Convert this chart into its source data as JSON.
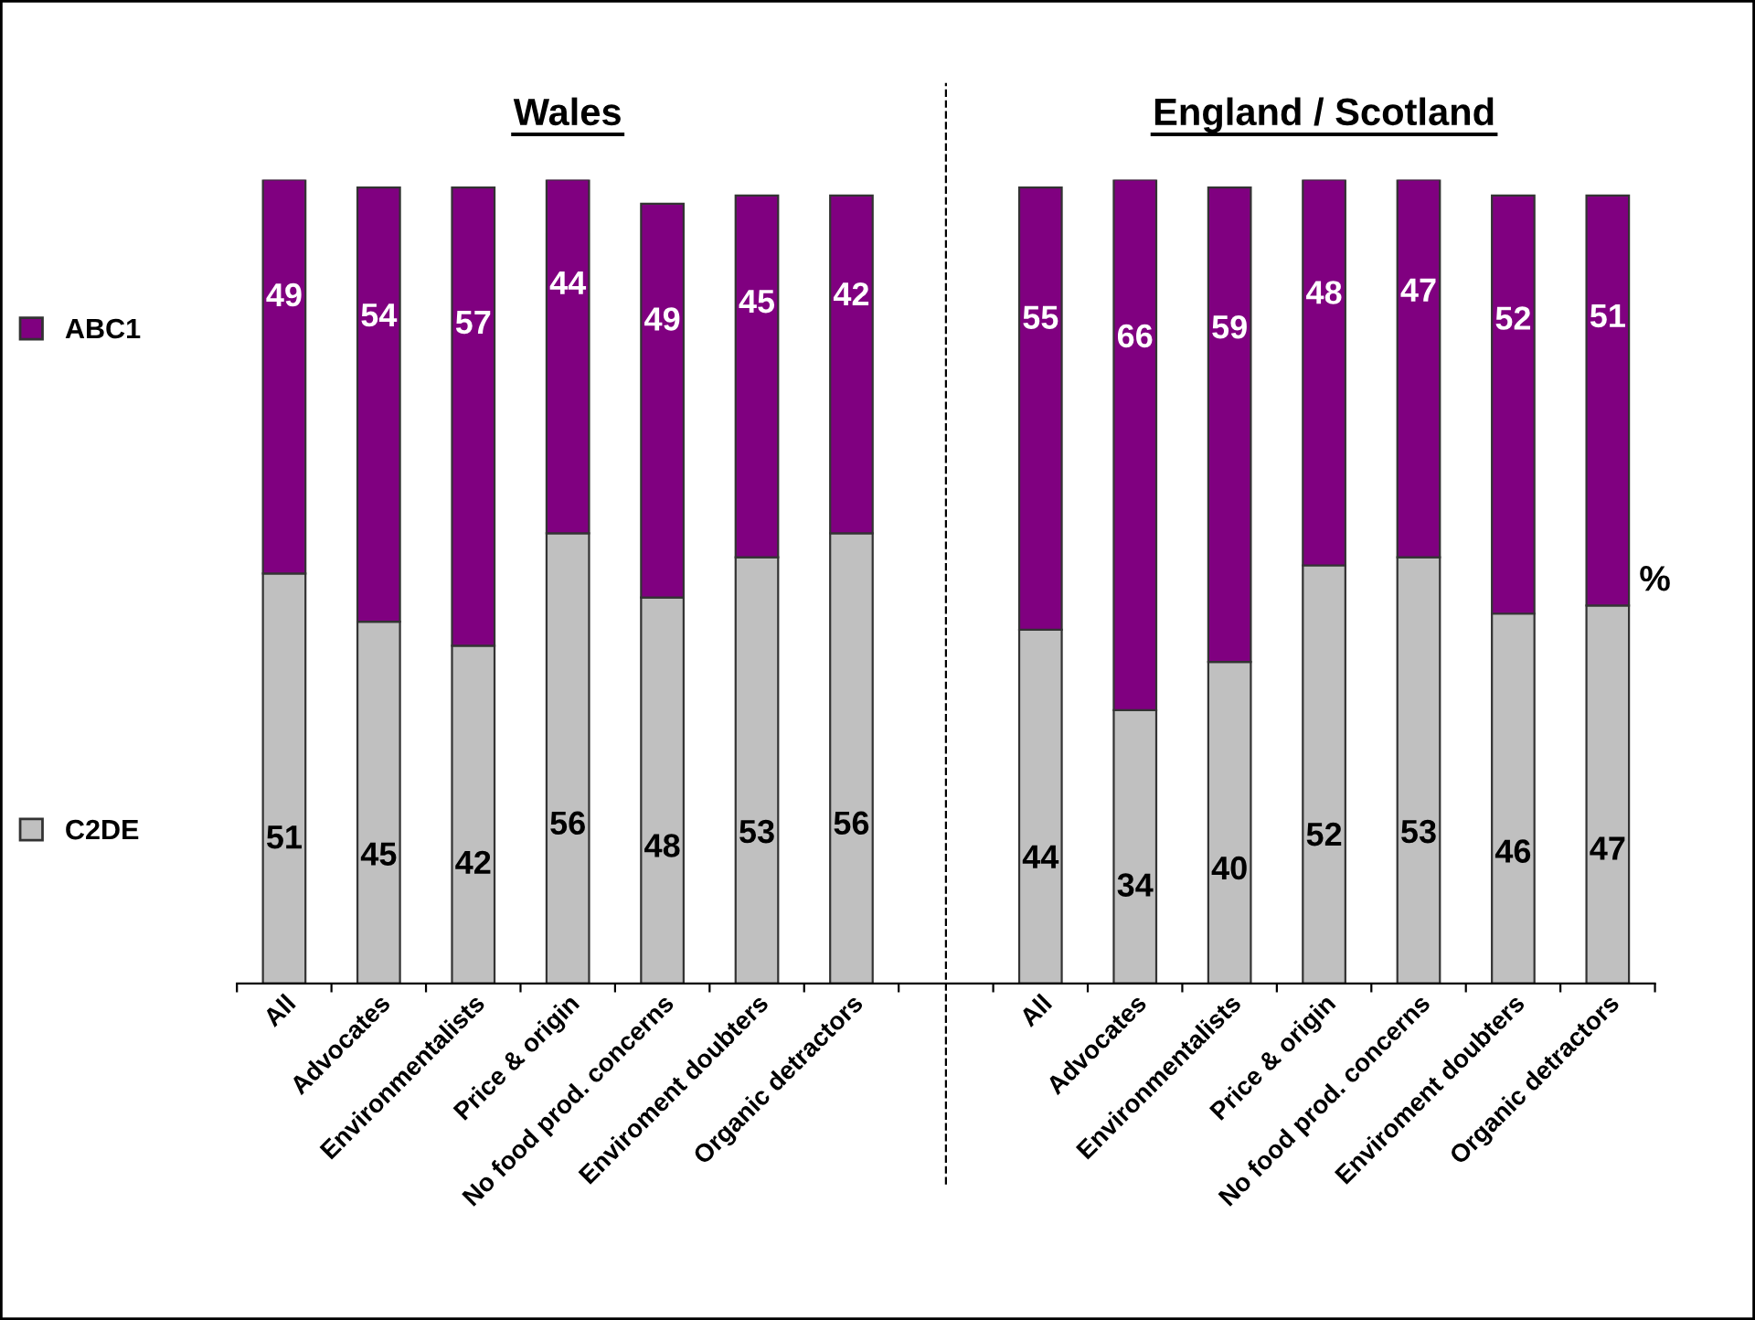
{
  "chart_data": {
    "type": "bar",
    "stacked": true,
    "categories": [
      "All",
      "Advocates",
      "Environmentalists",
      "Price & origin",
      "No food prod. concerns",
      "Enviroment doubters",
      "Organic detractors",
      null,
      "All",
      "Advocates",
      "Environmentalists",
      "Price & origin",
      "No food prod. concerns",
      "Enviroment doubters",
      "Organic detractors"
    ],
    "series": [
      {
        "name": "C2DE",
        "color": "#c0c0c0",
        "values": [
          51,
          45,
          42,
          56,
          48,
          53,
          56,
          null,
          44,
          34,
          40,
          52,
          53,
          46,
          47
        ]
      },
      {
        "name": "ABC1",
        "color": "#800080",
        "values": [
          49,
          54,
          57,
          44,
          49,
          45,
          42,
          null,
          55,
          66,
          59,
          48,
          47,
          52,
          51
        ]
      }
    ],
    "data_labels": true,
    "legend": "left",
    "tick_labels": "x",
    "ylabel": "%",
    "annotations": [
      "Wales",
      "England / Scotland"
    ]
  }
}
